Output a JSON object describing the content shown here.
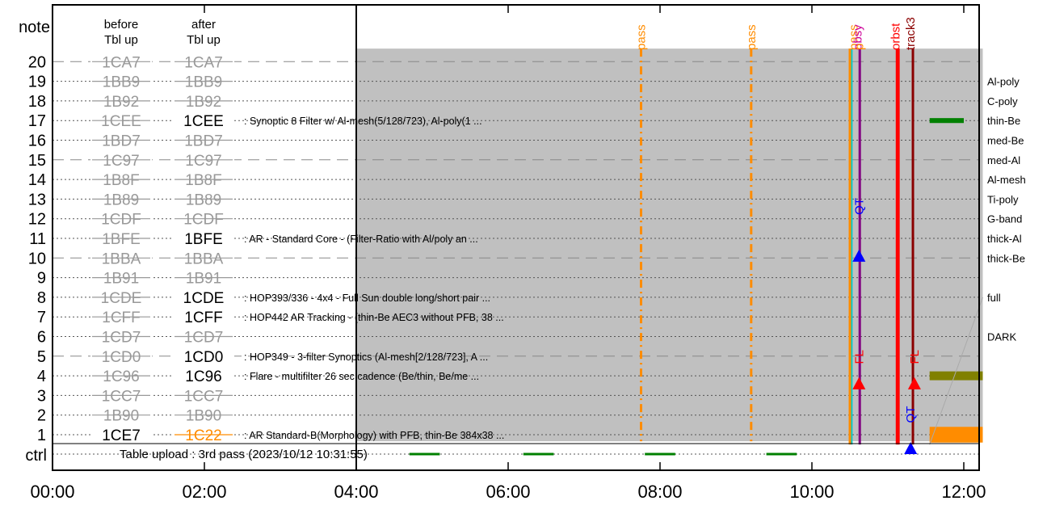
{
  "chart_data": {
    "type": "timeline",
    "header": {
      "note": "note",
      "before": [
        "before",
        "Tbl up"
      ],
      "after": [
        "after",
        "Tbl up"
      ],
      "ctrl": "ctrl"
    },
    "x_ticks": [
      "00:00",
      "02:00",
      "04:00",
      "06:00",
      "08:00",
      "10:00",
      "12:00"
    ],
    "x_range_hours": [
      0,
      12.25
    ],
    "table_upload_hour": 4.0,
    "shaded_window_hours": [
      4.0,
      12.3
    ],
    "rows": [
      {
        "note": 1,
        "before": "1CE7",
        "before_active": true,
        "after": "1C22",
        "after_color": "#ff8c00",
        "after_strike": true,
        "desc": ": AR Standard-B(Morphology) with PFB, thin-Be 384x38 ...",
        "filter": ""
      },
      {
        "note": 2,
        "before": "1B90",
        "after": "1B90",
        "desc": "",
        "filter": ""
      },
      {
        "note": 3,
        "before": "1CC7",
        "after": "1CC7",
        "desc": "",
        "filter": ""
      },
      {
        "note": 4,
        "before": "1C96",
        "after": "1C96",
        "after_active": true,
        "desc": ": Flare - multifilter 26 sec cadence (Be/thin, Be/me ...",
        "filter": ""
      },
      {
        "note": 5,
        "before": "1CD0",
        "after": "1CD0",
        "after_active": true,
        "desc": ": HOP349 - 3-filter Synoptics (Al-mesh[2/128/723], A ...",
        "filter": ""
      },
      {
        "note": 6,
        "before": "1CD7",
        "after": "1CD7",
        "desc": "",
        "filter": "DARK"
      },
      {
        "note": 7,
        "before": "1CFF",
        "after": "1CFF",
        "after_active": true,
        "desc": ": HOP442 AR Tracking - (thin-Be AEC3 without PFB, 38 ...",
        "filter": ""
      },
      {
        "note": 8,
        "before": "1CDE",
        "after": "1CDE",
        "after_active": true,
        "desc": ": HOP393/336 - 4x4 - Full Sun double long/short pair ...",
        "filter": "full"
      },
      {
        "note": 9,
        "before": "1B91",
        "after": "1B91",
        "desc": "",
        "filter": ""
      },
      {
        "note": 10,
        "before": "1BBA",
        "after": "1BBA",
        "desc": "",
        "filter": "thick-Be"
      },
      {
        "note": 11,
        "before": "1BFE",
        "after": "1BFE",
        "after_active": true,
        "desc": ": AR - Standard Core - (Filter-Ratio with Al/poly an ...",
        "filter": "thick-Al"
      },
      {
        "note": 12,
        "before": "1CDF",
        "after": "1CDF",
        "desc": "",
        "filter": "G-band"
      },
      {
        "note": 13,
        "before": "1B89",
        "after": "1B89",
        "desc": "",
        "filter": "Ti-poly"
      },
      {
        "note": 14,
        "before": "1B8F",
        "after": "1B8F",
        "desc": "",
        "filter": "Al-mesh"
      },
      {
        "note": 15,
        "before": "1C97",
        "after": "1C97",
        "desc": "",
        "filter": "med-Al"
      },
      {
        "note": 16,
        "before": "1BD7",
        "after": "1BD7",
        "desc": "",
        "filter": "med-Be"
      },
      {
        "note": 17,
        "before": "1CEE",
        "after": "1CEE",
        "after_active": true,
        "desc": ": Synoptic 8 Filter w/ Al-mesh(5/128/723), Al-poly(1 ...",
        "filter": "thin-Be"
      },
      {
        "note": 18,
        "before": "1B92",
        "after": "1B92",
        "desc": "",
        "filter": "C-poly"
      },
      {
        "note": 19,
        "before": "1BB9",
        "after": "1BB9",
        "desc": "",
        "filter": "Al-poly"
      },
      {
        "note": 20,
        "before": "1CA7",
        "after": "1CA7",
        "desc": "",
        "filter": ""
      }
    ],
    "ctrl_text": "Table upload : 3rd pass (2023/10/12 10:31:55)",
    "pass_lines": [
      {
        "hour": 7.75,
        "label": "pass"
      },
      {
        "hour": 9.2,
        "label": "pass"
      }
    ],
    "top_labels": [
      {
        "hour": 10.55,
        "label": "pass",
        "color": "#ff8c00"
      },
      {
        "hour": 10.6,
        "label": "obsy",
        "color": "#cc0099"
      },
      {
        "hour": 10.62,
        "label": "p",
        "color": "#ff8c00"
      },
      {
        "hour": 11.1,
        "label": "orbst",
        "color": "#ff0000"
      },
      {
        "hour": 11.3,
        "label": "track3",
        "color": "#8b0000"
      }
    ],
    "vertical_lines": [
      {
        "hour": 10.52,
        "color": "#00cccc"
      },
      {
        "hour": 10.5,
        "color": "#ff8c00"
      },
      {
        "hour": 10.63,
        "color": "#800080"
      },
      {
        "hour": 11.12,
        "color": "#ff0000"
      },
      {
        "hour": 11.14,
        "color": "#ff0000"
      },
      {
        "hour": 11.33,
        "color": "#8b0000"
      }
    ],
    "markers": [
      {
        "hour": 10.62,
        "row": 10.1,
        "color": "#0000ff",
        "label": "QT",
        "label_row": 12.2
      },
      {
        "hour": 10.62,
        "row": 3.6,
        "color": "#ff0000",
        "label": "FL",
        "label_row": 4.6
      },
      {
        "hour": 11.35,
        "row": 3.6,
        "color": "#ff0000",
        "label": "FL",
        "label_row": 4.6
      },
      {
        "hour": 11.3,
        "row": 0.3,
        "color": "#0000ff",
        "label": "QT",
        "label_row": 1.6
      }
    ],
    "ctrl_dashes": [
      {
        "start": 4.7,
        "end": 5.1
      },
      {
        "start": 6.2,
        "end": 6.6
      },
      {
        "start": 7.8,
        "end": 8.2
      },
      {
        "start": 9.4,
        "end": 9.8
      }
    ],
    "right_bars": [
      {
        "row": 1,
        "start": 11.55,
        "end": 12.25,
        "color": "#ff8c00",
        "height": 0.8
      },
      {
        "row": 4,
        "start": 11.55,
        "end": 12.25,
        "color": "#808000",
        "height": 0.45
      },
      {
        "row": 17,
        "start": 11.55,
        "end": 12.0,
        "color": "#008000",
        "height": 0.25
      }
    ],
    "colors": {
      "shade": "#c0c0c0",
      "inactive": "#999999",
      "active": "#000000",
      "pass": "#ff8c00",
      "ctrl_green": "#008000"
    }
  }
}
